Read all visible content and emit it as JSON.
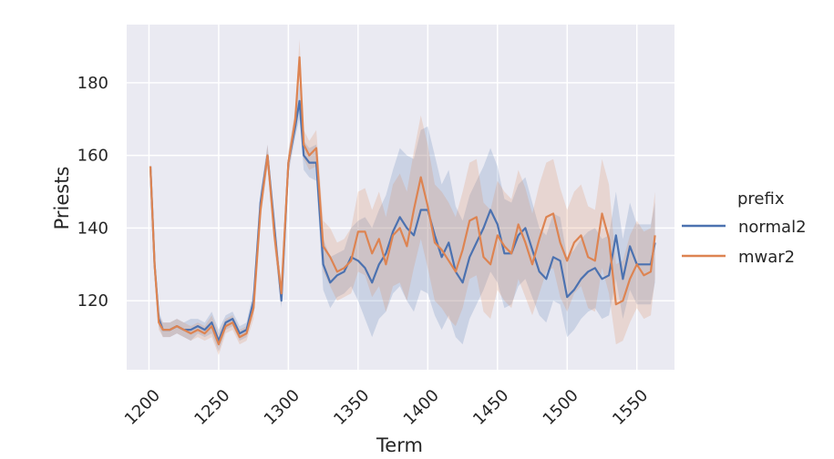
{
  "chart_data": {
    "type": "line",
    "title": "",
    "xlabel": "Term",
    "ylabel": "Priests",
    "xlim": [
      1184,
      1577
    ],
    "ylim": [
      101,
      196
    ],
    "xticks": [
      1200,
      1250,
      1300,
      1350,
      1400,
      1450,
      1500,
      1550
    ],
    "yticks": [
      120,
      140,
      160,
      180
    ],
    "grid": true,
    "legend": {
      "title": "prefix",
      "position": "right"
    },
    "series": [
      {
        "name": "normal2",
        "color": "#4c72b0",
        "x": [
          1201,
          1204,
          1207,
          1210,
          1215,
          1220,
          1225,
          1230,
          1235,
          1240,
          1245,
          1250,
          1255,
          1260,
          1265,
          1270,
          1275,
          1280,
          1285,
          1290,
          1295,
          1300,
          1305,
          1308,
          1311,
          1315,
          1320,
          1325,
          1330,
          1335,
          1340,
          1345,
          1350,
          1355,
          1360,
          1365,
          1370,
          1375,
          1380,
          1385,
          1390,
          1395,
          1400,
          1405,
          1410,
          1415,
          1420,
          1425,
          1430,
          1435,
          1440,
          1445,
          1450,
          1455,
          1460,
          1465,
          1470,
          1475,
          1480,
          1485,
          1490,
          1495,
          1500,
          1505,
          1510,
          1515,
          1520,
          1525,
          1530,
          1535,
          1540,
          1545,
          1550,
          1555,
          1560,
          1563
        ],
        "y": [
          157,
          130,
          115,
          112,
          112,
          113,
          112,
          112,
          113,
          112,
          114,
          109,
          114,
          115,
          111,
          112,
          120,
          147,
          160,
          140,
          120,
          158,
          168,
          175,
          160,
          158,
          158,
          130,
          125,
          127,
          128,
          132,
          131,
          129,
          125,
          130,
          133,
          139,
          143,
          140,
          138,
          145,
          145,
          138,
          132,
          136,
          128,
          125,
          132,
          136,
          140,
          145,
          141,
          133,
          133,
          138,
          140,
          134,
          128,
          126,
          132,
          131,
          121,
          123,
          126,
          128,
          129,
          126,
          127,
          138,
          126,
          135,
          130,
          130,
          130,
          136
        ],
        "lower": [
          157,
          128,
          113,
          110,
          110,
          111,
          110,
          109,
          111,
          110,
          111,
          106,
          112,
          113,
          109,
          110,
          117,
          144,
          157,
          136,
          118,
          155,
          165,
          170,
          156,
          154,
          153,
          123,
          118,
          121,
          122,
          124,
          120,
          115,
          110,
          115,
          117,
          122,
          124,
          120,
          117,
          123,
          122,
          116,
          112,
          116,
          110,
          108,
          115,
          119,
          123,
          128,
          125,
          118,
          119,
          124,
          126,
          121,
          116,
          114,
          120,
          119,
          110,
          112,
          115,
          117,
          118,
          115,
          116,
          126,
          115,
          123,
          119,
          119,
          119,
          125
        ],
        "upper": [
          157,
          132,
          117,
          114,
          114,
          115,
          114,
          115,
          115,
          114,
          117,
          112,
          116,
          117,
          113,
          114,
          123,
          150,
          163,
          144,
          122,
          161,
          171,
          180,
          164,
          162,
          163,
          137,
          132,
          133,
          134,
          140,
          142,
          143,
          140,
          145,
          149,
          156,
          162,
          160,
          159,
          167,
          168,
          160,
          152,
          156,
          146,
          142,
          149,
          153,
          157,
          162,
          157,
          148,
          147,
          152,
          154,
          147,
          140,
          138,
          144,
          143,
          132,
          134,
          137,
          139,
          140,
          137,
          138,
          150,
          137,
          147,
          141,
          141,
          141,
          147
        ]
      },
      {
        "name": "mwar2",
        "color": "#dd8452",
        "x": [
          1201,
          1204,
          1207,
          1210,
          1215,
          1220,
          1225,
          1230,
          1235,
          1240,
          1245,
          1250,
          1255,
          1260,
          1265,
          1270,
          1275,
          1280,
          1285,
          1290,
          1295,
          1300,
          1305,
          1308,
          1311,
          1315,
          1320,
          1325,
          1330,
          1335,
          1340,
          1345,
          1350,
          1355,
          1360,
          1365,
          1370,
          1375,
          1380,
          1385,
          1390,
          1395,
          1400,
          1405,
          1410,
          1415,
          1420,
          1425,
          1430,
          1435,
          1440,
          1445,
          1450,
          1455,
          1460,
          1465,
          1470,
          1475,
          1480,
          1485,
          1490,
          1495,
          1500,
          1505,
          1510,
          1515,
          1520,
          1525,
          1530,
          1535,
          1540,
          1545,
          1550,
          1555,
          1560,
          1563
        ],
        "y": [
          157,
          130,
          114,
          112,
          112,
          113,
          112,
          111,
          112,
          111,
          113,
          108,
          113,
          114,
          110,
          111,
          118,
          145,
          160,
          138,
          122,
          158,
          170,
          187,
          163,
          160,
          162,
          135,
          132,
          128,
          129,
          131,
          139,
          139,
          133,
          137,
          130,
          138,
          140,
          135,
          145,
          154,
          146,
          136,
          134,
          131,
          128,
          134,
          142,
          143,
          132,
          130,
          138,
          135,
          133,
          141,
          136,
          130,
          137,
          143,
          144,
          136,
          131,
          136,
          138,
          132,
          131,
          144,
          137,
          119,
          120,
          126,
          130,
          127,
          128,
          138
        ],
        "lower": [
          157,
          128,
          112,
          110,
          110,
          111,
          110,
          109,
          110,
          109,
          110,
          105,
          111,
          112,
          108,
          109,
          115,
          142,
          157,
          134,
          119,
          155,
          167,
          182,
          159,
          156,
          157,
          128,
          124,
          120,
          121,
          122,
          128,
          127,
          121,
          124,
          117,
          124,
          125,
          120,
          129,
          137,
          129,
          120,
          118,
          115,
          113,
          118,
          126,
          127,
          117,
          115,
          123,
          120,
          118,
          126,
          121,
          116,
          122,
          128,
          129,
          121,
          117,
          122,
          124,
          118,
          117,
          129,
          122,
          108,
          109,
          114,
          118,
          115,
          116,
          126
        ],
        "upper": [
          157,
          132,
          116,
          114,
          114,
          115,
          114,
          113,
          114,
          113,
          116,
          111,
          115,
          116,
          112,
          113,
          121,
          148,
          163,
          142,
          125,
          161,
          173,
          192,
          167,
          164,
          167,
          142,
          140,
          136,
          137,
          140,
          150,
          151,
          145,
          150,
          143,
          152,
          155,
          150,
          161,
          171,
          163,
          152,
          150,
          147,
          143,
          150,
          158,
          159,
          147,
          145,
          153,
          150,
          148,
          156,
          151,
          144,
          152,
          158,
          159,
          151,
          145,
          150,
          152,
          146,
          145,
          159,
          152,
          130,
          131,
          138,
          142,
          139,
          140,
          150
        ]
      }
    ]
  }
}
